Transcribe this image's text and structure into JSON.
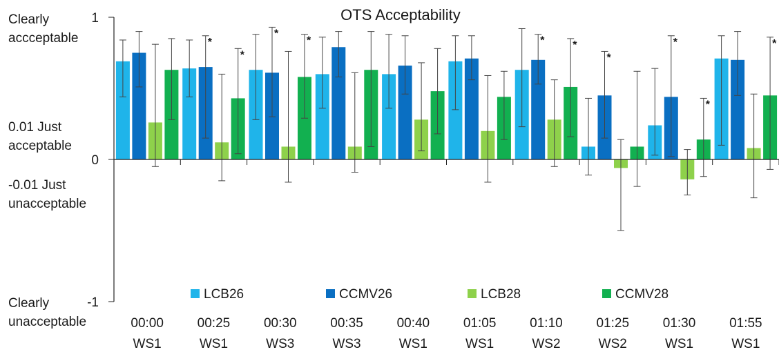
{
  "chart_data": {
    "type": "bar",
    "title": "OTS Acceptability",
    "ylim": [
      -1,
      1
    ],
    "y_ticks": [
      {
        "value": 1,
        "label": "1"
      },
      {
        "value": 0,
        "label": "0"
      },
      {
        "value": -1,
        "label": "-1"
      }
    ],
    "y_annotations": [
      {
        "value": 1,
        "lines": [
          "Clearly",
          "accceptable"
        ]
      },
      {
        "value": 0.01,
        "lines": [
          "0.01 Just",
          "acceptable"
        ]
      },
      {
        "value": -0.01,
        "lines": [
          "-0.01 Just",
          "unacceptable"
        ]
      },
      {
        "value": -1,
        "lines": [
          "Clearly",
          "unacceptable"
        ]
      }
    ],
    "categories": [
      {
        "time": "00:00",
        "ws": "WS1"
      },
      {
        "time": "00:25",
        "ws": "WS1"
      },
      {
        "time": "00:30",
        "ws": "WS3"
      },
      {
        "time": "00:35",
        "ws": "WS3"
      },
      {
        "time": "00:40",
        "ws": "WS1"
      },
      {
        "time": "01:05",
        "ws": "WS1"
      },
      {
        "time": "01:10",
        "ws": "WS2"
      },
      {
        "time": "01:25",
        "ws": "WS2"
      },
      {
        "time": "01:30",
        "ws": "WS1"
      },
      {
        "time": "01:55",
        "ws": "WS1"
      }
    ],
    "series": [
      {
        "name": "LCB26",
        "color": "#1fb4ea",
        "values": [
          0.69,
          0.64,
          0.63,
          0.6,
          0.6,
          0.69,
          0.63,
          0.09,
          0.24,
          0.71
        ],
        "err_low": [
          0.44,
          0.44,
          0.28,
          0.36,
          0.36,
          0.35,
          0.23,
          -0.11,
          0.03,
          0.1
        ],
        "err_high": [
          0.84,
          0.84,
          0.88,
          0.86,
          0.88,
          0.87,
          0.92,
          0.43,
          0.64,
          0.87
        ],
        "sig": [
          false,
          false,
          false,
          false,
          false,
          false,
          false,
          false,
          false,
          false
        ]
      },
      {
        "name": "CCMV26",
        "color": "#0a6fc2",
        "values": [
          0.75,
          0.65,
          0.61,
          0.79,
          0.66,
          0.71,
          0.7,
          0.45,
          0.44,
          0.7
        ],
        "err_low": [
          0.51,
          0.15,
          0.3,
          0.58,
          0.46,
          0.56,
          0.53,
          0.15,
          0.02,
          0.45
        ],
        "err_high": [
          0.9,
          0.87,
          0.93,
          0.9,
          0.87,
          0.87,
          0.88,
          0.76,
          0.87,
          0.9
        ],
        "sig": [
          false,
          true,
          true,
          false,
          false,
          false,
          true,
          true,
          true,
          false
        ]
      },
      {
        "name": "LCB28",
        "color": "#8ed14b",
        "values": [
          0.26,
          0.12,
          0.09,
          0.09,
          0.28,
          0.2,
          0.28,
          -0.06,
          -0.14,
          0.08
        ],
        "err_low": [
          -0.05,
          -0.15,
          -0.16,
          -0.09,
          0.06,
          -0.16,
          -0.05,
          -0.5,
          -0.25,
          -0.27
        ],
        "err_high": [
          0.81,
          0.6,
          0.76,
          0.61,
          0.68,
          0.59,
          0.56,
          0.14,
          0.07,
          0.46
        ],
        "sig": [
          false,
          false,
          false,
          false,
          false,
          false,
          false,
          false,
          false,
          false
        ]
      },
      {
        "name": "CCMV28",
        "color": "#12b050",
        "values": [
          0.63,
          0.43,
          0.58,
          0.63,
          0.48,
          0.44,
          0.51,
          0.09,
          0.14,
          0.45
        ],
        "err_low": [
          0.28,
          0.04,
          0.29,
          0.09,
          0.18,
          0.14,
          0.16,
          -0.19,
          -0.12,
          -0.07
        ],
        "err_high": [
          0.85,
          0.78,
          0.88,
          0.9,
          0.78,
          0.62,
          0.85,
          0.62,
          0.43,
          0.86
        ],
        "sig": [
          false,
          true,
          true,
          false,
          false,
          false,
          true,
          false,
          true,
          true
        ]
      }
    ],
    "sig_marker": "*",
    "legend_position": "bottom"
  }
}
